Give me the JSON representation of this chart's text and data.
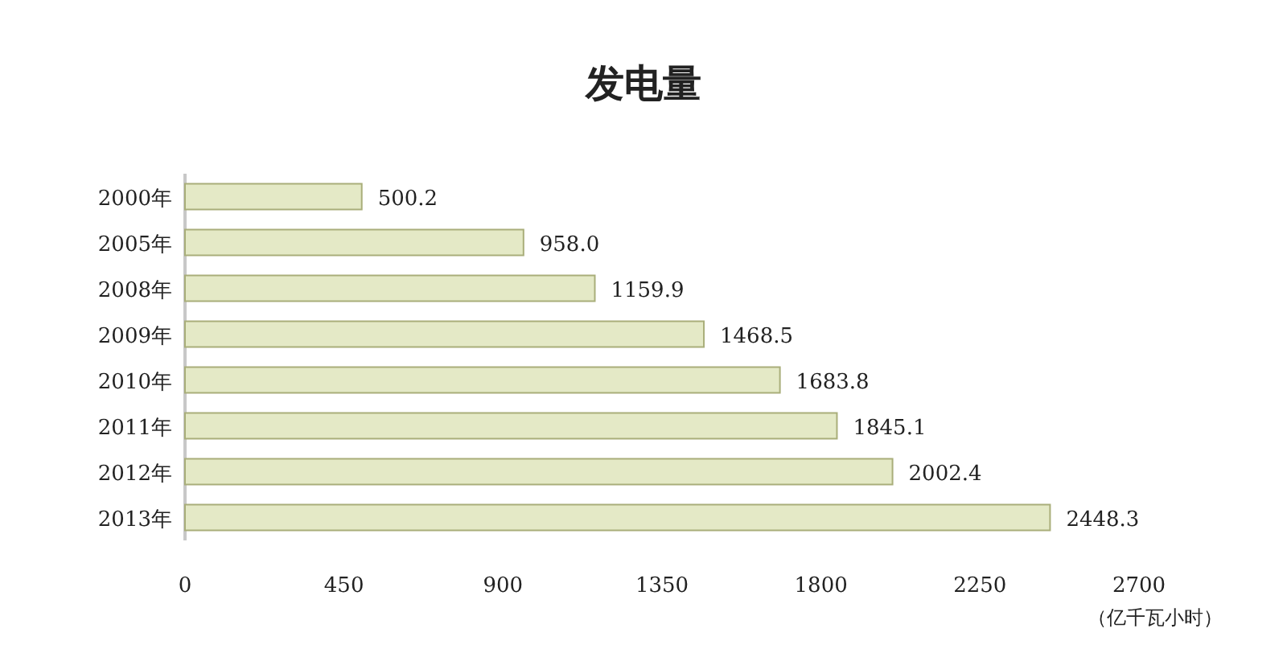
{
  "chart_data": {
    "type": "bar",
    "orientation": "horizontal",
    "title": "发电量",
    "xlabel": "（亿千瓦小时）",
    "categories": [
      "2000年",
      "2005年",
      "2008年",
      "2009年",
      "2010年",
      "2011年",
      "2012年",
      "2013年"
    ],
    "values": [
      500.2,
      958.0,
      1159.9,
      1468.5,
      1683.8,
      1845.1,
      2002.4,
      2448.3
    ],
    "value_labels": [
      "500.2",
      "958.0",
      "1159.9",
      "1468.5",
      "1683.8",
      "1845.1",
      "2002.4",
      "2448.3"
    ],
    "color": "#e4e9c6",
    "xlim": [
      0,
      2700
    ],
    "xticks": [
      0,
      450,
      900,
      1350,
      1800,
      2250,
      2700
    ]
  }
}
